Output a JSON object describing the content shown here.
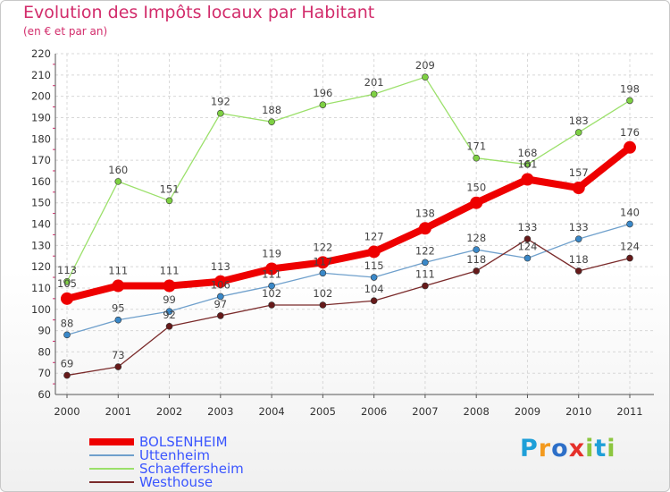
{
  "header": {
    "title": "Evolution des Impôts locaux par Habitant",
    "subtitle": "(en € et par an)"
  },
  "logo": {
    "text": "Proxiti",
    "letters": [
      {
        "ch": "P",
        "color": "#1e9fd8"
      },
      {
        "ch": "r",
        "color": "#f39a1e"
      },
      {
        "ch": "o",
        "color": "#2d6fc8"
      },
      {
        "ch": "x",
        "color": "#e5302a"
      },
      {
        "ch": "i",
        "color": "#8cc63f"
      },
      {
        "ch": "t",
        "color": "#1e9fd8"
      },
      {
        "ch": "i",
        "color": "#8cc63f"
      }
    ]
  },
  "chart_data": {
    "type": "line",
    "title": "Evolution des Impôts locaux par Habitant",
    "subtitle": "(en € et par an)",
    "xlabel": "",
    "ylabel": "",
    "ylim": [
      60,
      220
    ],
    "ytick_step": 10,
    "grid": true,
    "legend_position": "bottom-left",
    "categories": [
      "2000",
      "2001",
      "2002",
      "2003",
      "2004",
      "2005",
      "2006",
      "2007",
      "2008",
      "2009",
      "2010",
      "2011"
    ],
    "series": [
      {
        "name": "BOLSENHEIM",
        "color": "#ee0000",
        "marker_color": "#ee0000",
        "values": [
          105,
          111,
          111,
          113,
          119,
          122,
          127,
          138,
          150,
          161,
          157,
          176
        ]
      },
      {
        "name": "Uttenheim",
        "color": "#6fa0cc",
        "marker_color": "#3a88c8",
        "values": [
          88,
          95,
          99,
          106,
          111,
          117,
          115,
          122,
          128,
          124,
          133,
          140
        ]
      },
      {
        "name": "Schaeffersheim",
        "color": "#9be06a",
        "marker_color": "#7ed043",
        "values": [
          113,
          160,
          151,
          192,
          188,
          196,
          201,
          209,
          171,
          168,
          183,
          198
        ]
      },
      {
        "name": "Westhouse",
        "color": "#7a2a2a",
        "marker_color": "#661a1a",
        "values": [
          69,
          73,
          92,
          97,
          102,
          102,
          104,
          111,
          118,
          133,
          118,
          124
        ]
      }
    ]
  }
}
